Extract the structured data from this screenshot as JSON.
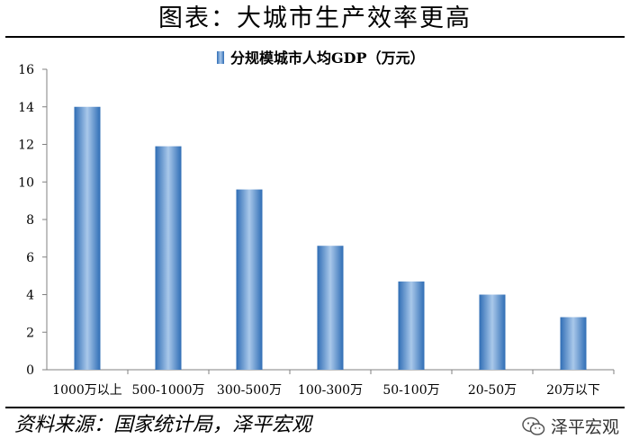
{
  "figure": {
    "title": "图表：大城市生产效率更高",
    "source": "资料来源：国家统计局，泽平宏观",
    "watermark": "泽平宏观",
    "watermark_icon": "wechat-logo-icon"
  },
  "chart_data": {
    "type": "bar",
    "categories": [
      "1000万以上",
      "500-1000万",
      "300-500万",
      "100-300万",
      "50-100万",
      "20-50万",
      "20万以下"
    ],
    "series": [
      {
        "name": "分规模城市人均GDP（万元）",
        "values": [
          14.0,
          11.9,
          9.6,
          6.6,
          4.7,
          4.0,
          2.8
        ],
        "color": "#4A86C8"
      }
    ],
    "ylim": [
      0,
      16
    ],
    "yticks": [
      0,
      2,
      4,
      6,
      8,
      10,
      12,
      14,
      16
    ],
    "xlabel": "",
    "ylabel": "",
    "grid": false,
    "legend": "top-center"
  }
}
